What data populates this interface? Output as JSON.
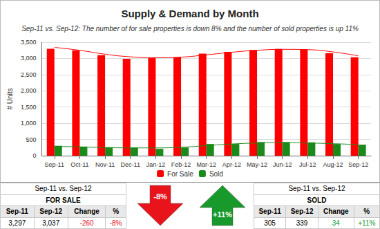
{
  "chart_data": {
    "type": "bar",
    "title": "Supply & Demand by Month",
    "subtitle": "Sep-11 vs. Sep-12: The number of for sale properties is down 8% and the number of sold properties is up 11%",
    "y_label": "# Units",
    "categories": [
      "Sep-11",
      "Oct-11",
      "Nov-11",
      "Dec-11",
      "Jan-12",
      "Feb-12",
      "Mar-12",
      "Apr-12",
      "May-12",
      "Jun-12",
      "Jul-12",
      "Aug-12",
      "Sep-12"
    ],
    "series": [
      {
        "name": "For Sale",
        "color": "#ff0000",
        "values": [
          3297,
          3250,
          3100,
          2990,
          3010,
          3030,
          3150,
          3200,
          3260,
          3290,
          3280,
          3160,
          3037
        ],
        "trend": [
          3340,
          3250,
          3130,
          3050,
          3020,
          3040,
          3110,
          3190,
          3250,
          3280,
          3270,
          3200,
          3080
        ]
      },
      {
        "name": "Sold",
        "color": "#1a8a1a",
        "values": [
          305,
          280,
          260,
          250,
          210,
          250,
          360,
          360,
          420,
          420,
          410,
          360,
          339
        ],
        "trend": [
          290,
          270,
          250,
          240,
          240,
          260,
          310,
          360,
          390,
          400,
          390,
          370,
          340
        ]
      }
    ],
    "ylim": [
      0,
      3500
    ],
    "yticks": [
      0,
      500,
      1000,
      1500,
      2000,
      2500,
      3000,
      3500
    ],
    "grid": true,
    "legend": "bottom"
  },
  "summary": {
    "panels": [
      {
        "title": "Sep-11 vs. Sep-12",
        "heading": "FOR SALE",
        "columns": [
          "Sep-11",
          "Sep-12",
          "Change",
          "%"
        ],
        "values": [
          "3,297",
          "3,037",
          "-260",
          "-8%"
        ]
      },
      {
        "title": "Sep-11 vs. Sep-12",
        "heading": "SOLD",
        "columns": [
          "Sep-11",
          "Sep-12",
          "Change",
          "%"
        ],
        "values": [
          "305",
          "339",
          "34",
          "+11%"
        ]
      }
    ],
    "arrows": [
      {
        "label": "-8%",
        "direction": "down",
        "color": "#e8131b"
      },
      {
        "label": "+11%",
        "direction": "up",
        "color": "#179a2b"
      }
    ]
  }
}
